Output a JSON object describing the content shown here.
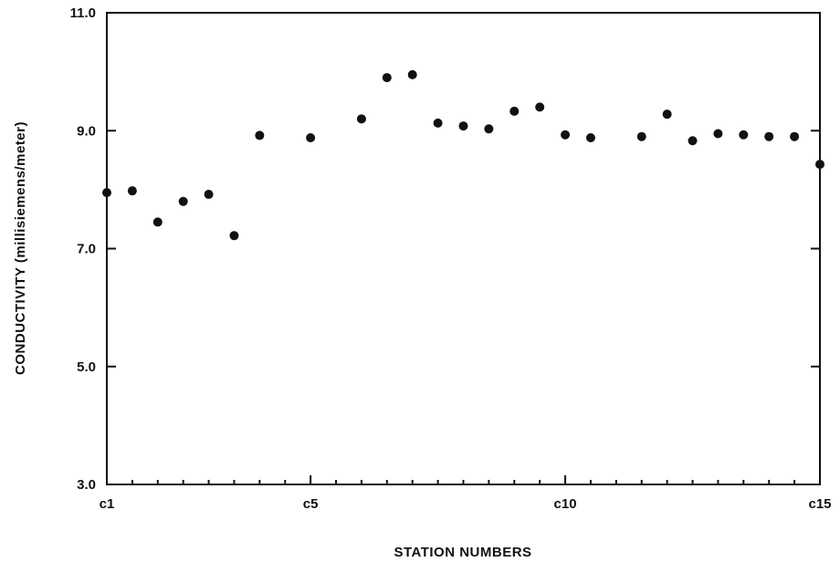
{
  "chart_data": {
    "type": "scatter",
    "title": "",
    "xlabel": "STATION NUMBERS",
    "ylabel": "CONDUCTIVITY (millisiemens/meter)",
    "xlim": [
      1,
      15
    ],
    "ylim": [
      3.0,
      11.0
    ],
    "x_ticks": [
      {
        "value": 1,
        "label": "c1"
      },
      {
        "value": 5,
        "label": "c5"
      },
      {
        "value": 10,
        "label": "c10"
      },
      {
        "value": 15,
        "label": "c15"
      }
    ],
    "x_minor_ticks": [
      1.5,
      2,
      2.5,
      3,
      3.5,
      4,
      4.5,
      5.5,
      6,
      6.5,
      7,
      7.5,
      8,
      8.5,
      9,
      9.5,
      10.5,
      11,
      11.5,
      12,
      12.5,
      13,
      13.5,
      14,
      14.5
    ],
    "y_ticks": [
      {
        "value": 3.0,
        "label": "3.0"
      },
      {
        "value": 5.0,
        "label": "5.0"
      },
      {
        "value": 7.0,
        "label": "7.0"
      },
      {
        "value": 9.0,
        "label": "9.0"
      },
      {
        "value": 11.0,
        "label": "11.0"
      }
    ],
    "grid": false,
    "series": [
      {
        "points": [
          {
            "x": 1.0,
            "y": 7.95
          },
          {
            "x": 1.5,
            "y": 7.98
          },
          {
            "x": 2.0,
            "y": 7.45
          },
          {
            "x": 2.5,
            "y": 7.8
          },
          {
            "x": 3.0,
            "y": 7.92
          },
          {
            "x": 3.5,
            "y": 7.22
          },
          {
            "x": 4.0,
            "y": 8.92
          },
          {
            "x": 5.0,
            "y": 8.88
          },
          {
            "x": 6.0,
            "y": 9.2
          },
          {
            "x": 6.5,
            "y": 9.9
          },
          {
            "x": 7.0,
            "y": 9.95
          },
          {
            "x": 7.5,
            "y": 9.13
          },
          {
            "x": 8.0,
            "y": 9.08
          },
          {
            "x": 8.5,
            "y": 9.03
          },
          {
            "x": 9.0,
            "y": 9.33
          },
          {
            "x": 9.5,
            "y": 9.4
          },
          {
            "x": 10.0,
            "y": 8.93
          },
          {
            "x": 10.5,
            "y": 8.88
          },
          {
            "x": 11.5,
            "y": 8.9
          },
          {
            "x": 12.0,
            "y": 9.28
          },
          {
            "x": 12.5,
            "y": 8.83
          },
          {
            "x": 13.0,
            "y": 8.95
          },
          {
            "x": 13.5,
            "y": 8.93
          },
          {
            "x": 14.0,
            "y": 8.9
          },
          {
            "x": 14.5,
            "y": 8.9
          },
          {
            "x": 15.0,
            "y": 8.43
          }
        ]
      }
    ]
  }
}
